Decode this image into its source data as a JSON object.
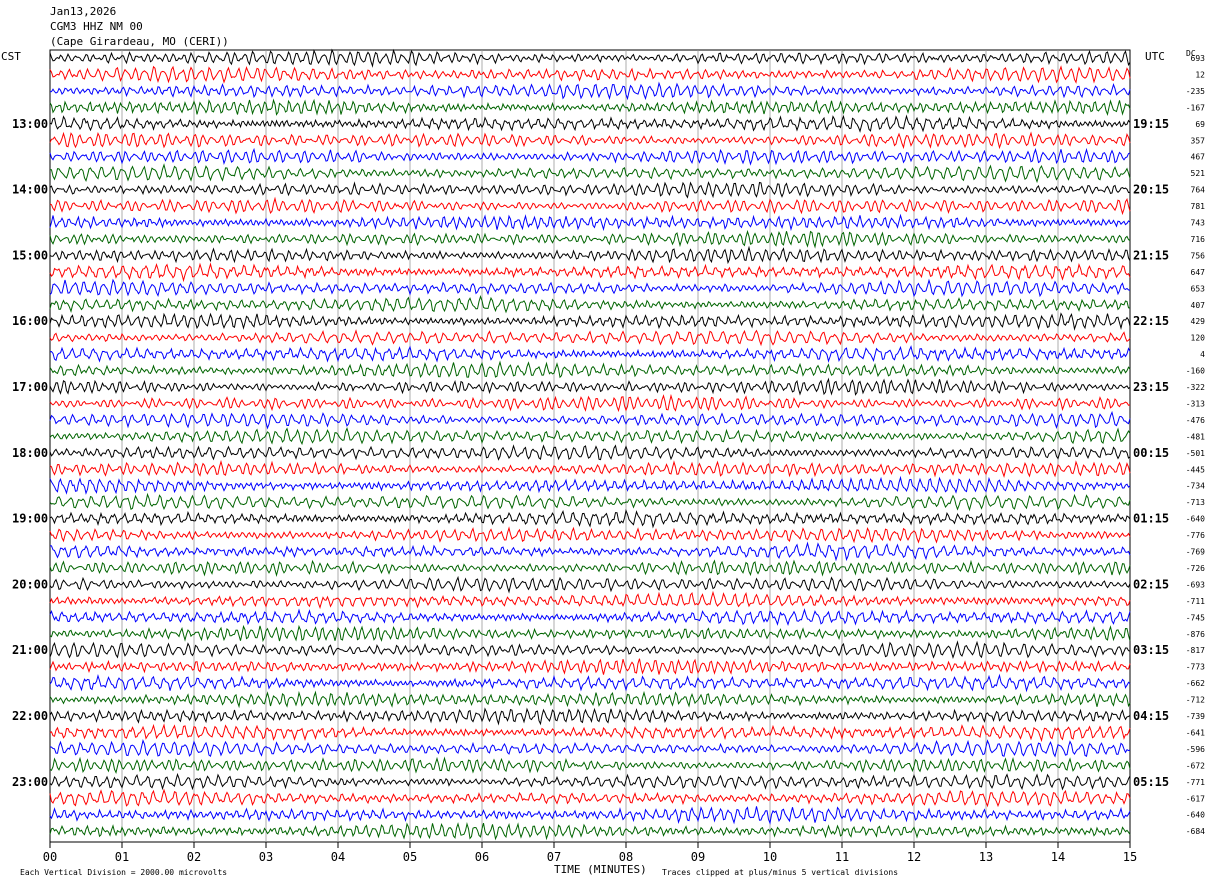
{
  "header": {
    "date": "Jan13,2026",
    "station": "CGM3 HHZ NM 00",
    "location": "(Cape Girardeau, MO (CERI))"
  },
  "left_axis_label": "CST",
  "right_axis_label": "UTC",
  "dc_label": "DC",
  "footer": {
    "scale_note": "Each Vertical Division = 2000.00 microvolts",
    "xlabel": "TIME (MINUTES)",
    "clip_note": "Traces clipped at plus/minus 5 vertical divisions"
  },
  "chart_data": {
    "type": "line",
    "title": "CGM3 HHZ NM 00",
    "xlabel": "TIME (MINUTES)",
    "xlim": [
      0,
      15
    ],
    "x_ticks": [
      "00",
      "01",
      "02",
      "03",
      "04",
      "05",
      "06",
      "07",
      "08",
      "09",
      "10",
      "11",
      "12",
      "13",
      "14",
      "15"
    ],
    "grid": true,
    "rows_per_hour": 4,
    "trace_colors": [
      "#000000",
      "#ff0000",
      "#0000ff",
      "#006400"
    ],
    "cst_hour_labels": [
      "13:00",
      "14:00",
      "15:00",
      "16:00",
      "17:00",
      "18:00",
      "19:00",
      "20:00",
      "21:00",
      "22:00",
      "23:00"
    ],
    "utc_hour_labels": [
      "19:15",
      "20:15",
      "21:15",
      "22:15",
      "23:15",
      "00:15",
      "01:15",
      "02:15",
      "03:15",
      "04:15",
      "05:15"
    ],
    "dc_offsets": [
      "693",
      "12",
      "-235",
      "-167",
      "69",
      "357",
      "467",
      "521",
      "764",
      "781",
      "743",
      "716",
      "756",
      "647",
      "653",
      "407",
      "429",
      "120",
      "4",
      "-160",
      "-322",
      "-313",
      "-476",
      "-481",
      "-501",
      "-445",
      "-734",
      "-713",
      "-640",
      "-776",
      "-769",
      "-726",
      "-693",
      "-711",
      "-745",
      "-876",
      "-817",
      "-773",
      "-662",
      "-712",
      "-739",
      "-641",
      "-596",
      "-672",
      "-771",
      "-617",
      "-640",
      "-684"
    ]
  }
}
